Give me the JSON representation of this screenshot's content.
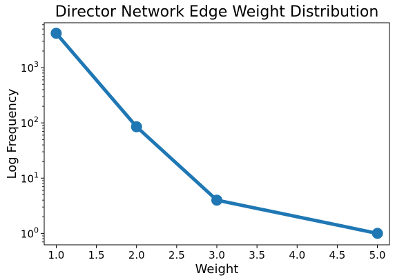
{
  "chart_data": {
    "type": "line",
    "title": "Director Network Edge Weight Distribution",
    "xlabel": "Weight",
    "ylabel": "Log Frequency",
    "x": [
      1.0,
      2.0,
      3.0,
      4.0,
      5.0
    ],
    "series": [
      {
        "values": [
          4200,
          85,
          4,
          2,
          1
        ]
      }
    ],
    "x_points": [
      1.0,
      2.0,
      3.0,
      5.0
    ],
    "y_points": [
      4200,
      85,
      4,
      1
    ],
    "xlim": [
      0.85,
      5.15
    ],
    "ylim": [
      0.62,
      6500
    ],
    "y_scale": "log",
    "x_ticks": [
      "1.0",
      "1.5",
      "2.0",
      "2.5",
      "3.0",
      "3.5",
      "4.0",
      "4.5",
      "5.0"
    ],
    "y_ticks": [
      {
        "base": "10",
        "exp": "0"
      },
      {
        "base": "10",
        "exp": "1"
      },
      {
        "base": "10",
        "exp": "2"
      },
      {
        "base": "10",
        "exp": "3"
      }
    ],
    "grid": false,
    "legend": "none",
    "color": "#1f77b4"
  }
}
